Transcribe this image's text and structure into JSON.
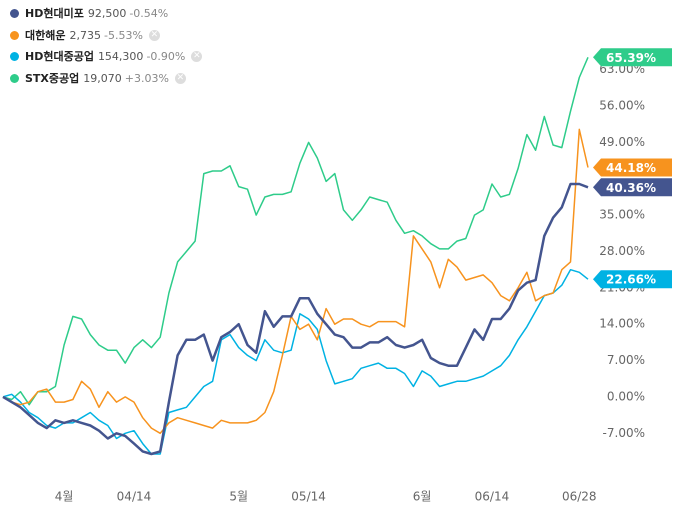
{
  "chart_data": {
    "type": "line",
    "categories": [
      null,
      null,
      null,
      null,
      null,
      null,
      null,
      "4월",
      null,
      null,
      null,
      null,
      null,
      null,
      null,
      "04/14",
      null,
      null,
      null,
      null,
      null,
      null,
      null,
      null,
      null,
      null,
      null,
      "5월",
      null,
      null,
      null,
      null,
      null,
      null,
      null,
      "05/14",
      null,
      null,
      null,
      null,
      null,
      null,
      null,
      null,
      null,
      null,
      null,
      null,
      "6월",
      null,
      null,
      null,
      null,
      null,
      null,
      null,
      "06/14",
      null,
      null,
      null,
      null,
      null,
      null,
      null,
      null,
      null,
      "06/28",
      null
    ],
    "series": [
      {
        "name": "HD현대미포",
        "price": "92,500",
        "change": "-0.54%",
        "color": "#44558f",
        "values": [
          0,
          -1,
          -2,
          -3.5,
          -5,
          -6,
          -4.5,
          -5,
          -4.5,
          -5,
          -5.5,
          -6.5,
          -8,
          -7,
          -7.5,
          -9,
          -10.5,
          -11,
          -10.5,
          -1,
          8,
          11,
          11,
          12,
          7,
          11.5,
          12.5,
          14,
          10,
          8.5,
          16.5,
          13.5,
          15.5,
          15.5,
          19,
          19,
          16,
          14,
          12,
          11.5,
          9.5,
          9.5,
          10.5,
          10.5,
          11.5,
          10,
          9.5,
          10,
          11,
          7.5,
          6.5,
          6,
          6,
          9.5,
          13,
          11,
          15,
          15,
          17,
          20.5,
          22,
          22.5,
          31,
          34.5,
          36.5,
          41,
          41,
          40.36
        ],
        "value_labels": [
          null,
          null,
          null,
          null,
          null,
          null,
          null,
          null,
          null,
          null,
          null,
          null,
          null,
          null,
          null,
          null,
          null,
          null,
          null,
          null,
          null,
          null,
          null,
          null,
          null,
          null,
          null,
          null,
          null,
          null,
          null,
          null,
          null,
          null,
          null,
          null,
          null,
          null,
          null,
          null,
          null,
          null,
          null,
          null,
          null,
          null,
          null,
          null,
          null,
          null,
          null,
          null,
          null,
          null,
          null,
          null,
          null,
          null,
          null,
          null,
          null,
          null,
          null,
          null,
          null,
          null,
          null,
          "40.36%"
        ]
      },
      {
        "name": "대한해운",
        "price": "2,735",
        "change": "-5.53%",
        "color": "#f7931e",
        "values": [
          0,
          -1,
          -1.5,
          -1,
          1,
          1.5,
          -1,
          -1,
          -0.5,
          3,
          1.5,
          -2,
          1,
          -1,
          0,
          -1,
          -4,
          -6,
          -7,
          -5,
          -4,
          -4.5,
          -5,
          -5.5,
          -6,
          -4.5,
          -5,
          -5,
          -5,
          -4.5,
          -3,
          1,
          8,
          15.5,
          13,
          14,
          11,
          17,
          14,
          15,
          15,
          14,
          13.5,
          14.5,
          14.5,
          14.5,
          13.5,
          31,
          28.5,
          26,
          21,
          26.5,
          25,
          22.5,
          23,
          23.5,
          22,
          19.5,
          18.5,
          21,
          24,
          18.5,
          19.5,
          20,
          24.5,
          26,
          51.5,
          44.18
        ],
        "value_labels": [
          null,
          null,
          null,
          null,
          null,
          null,
          null,
          null,
          null,
          null,
          null,
          null,
          null,
          null,
          null,
          null,
          null,
          null,
          null,
          null,
          null,
          null,
          null,
          null,
          null,
          null,
          null,
          null,
          null,
          null,
          null,
          null,
          null,
          null,
          null,
          null,
          null,
          null,
          null,
          null,
          null,
          null,
          null,
          null,
          null,
          null,
          null,
          null,
          null,
          null,
          null,
          null,
          null,
          null,
          null,
          null,
          null,
          null,
          null,
          null,
          null,
          null,
          null,
          null,
          null,
          null,
          null,
          "44.18%"
        ]
      },
      {
        "name": "HD현대중공업",
        "price": "154,300",
        "change": "-0.90%",
        "color": "#00b2e3",
        "values": [
          0,
          0.5,
          -1,
          -3,
          -4,
          -5.5,
          -6,
          -5,
          -5,
          -4,
          -3,
          -4.5,
          -5.5,
          -8,
          -7,
          -6.5,
          -9,
          -11,
          -11,
          -3,
          -2.5,
          -2,
          0,
          2,
          3,
          11,
          12,
          9.5,
          8,
          7,
          11,
          9,
          8.5,
          9,
          16,
          15,
          13,
          7,
          2.5,
          3,
          3.5,
          5.5,
          6,
          6.5,
          5.5,
          5.5,
          4.5,
          2,
          5,
          4,
          2,
          2.5,
          3,
          3,
          3.5,
          4,
          5,
          6,
          8,
          11,
          13.5,
          16.5,
          19.5,
          20,
          21.5,
          24.5,
          24,
          22.66
        ],
        "value_labels": [
          null,
          null,
          null,
          null,
          null,
          null,
          null,
          null,
          null,
          null,
          null,
          null,
          null,
          null,
          null,
          null,
          null,
          null,
          null,
          null,
          null,
          null,
          null,
          null,
          null,
          null,
          null,
          null,
          null,
          null,
          null,
          null,
          null,
          null,
          null,
          null,
          null,
          null,
          null,
          null,
          null,
          null,
          null,
          null,
          null,
          null,
          null,
          null,
          null,
          null,
          null,
          null,
          null,
          null,
          null,
          null,
          null,
          null,
          null,
          null,
          null,
          null,
          null,
          null,
          null,
          null,
          null,
          "22.66%"
        ]
      },
      {
        "name": "STX중공업",
        "price": "19,070",
        "change": "+3.03%",
        "color": "#2ecc8a",
        "values": [
          0,
          -0.5,
          1,
          -1.5,
          1,
          1,
          2,
          10,
          15.5,
          15,
          12,
          10,
          9,
          9,
          6.5,
          9.5,
          11,
          9.5,
          11.5,
          20,
          26,
          28,
          30,
          43,
          43.5,
          43.5,
          44.5,
          40.5,
          40,
          35,
          38.5,
          39,
          39,
          39.5,
          45,
          49,
          46,
          41.5,
          43,
          36,
          34,
          36,
          38.5,
          38,
          37.5,
          34,
          31.5,
          32,
          31,
          29.5,
          28.5,
          28.5,
          30,
          30.5,
          35,
          36,
          41,
          38.5,
          39,
          44,
          50.5,
          47.5,
          54,
          48.5,
          48,
          55,
          61.5,
          65.39
        ],
        "value_labels": [
          null,
          null,
          null,
          null,
          null,
          null,
          null,
          null,
          null,
          null,
          null,
          null,
          null,
          null,
          null,
          null,
          null,
          null,
          null,
          null,
          null,
          null,
          null,
          null,
          null,
          null,
          null,
          null,
          null,
          null,
          null,
          null,
          null,
          null,
          null,
          null,
          null,
          null,
          null,
          null,
          null,
          null,
          null,
          null,
          null,
          null,
          null,
          null,
          null,
          null,
          null,
          null,
          null,
          null,
          null,
          null,
          null,
          null,
          null,
          null,
          null,
          null,
          null,
          null,
          null,
          null,
          null,
          "65.39%"
        ]
      }
    ],
    "ylim": [
      -16,
      74.5
    ],
    "yticks": [
      {
        "value": -7,
        "label": "-7.00%"
      },
      {
        "value": 0,
        "label": "0.00%"
      },
      {
        "value": 7,
        "label": "7.00%"
      },
      {
        "value": 14,
        "label": "14.00%"
      },
      {
        "value": 21,
        "label": "21.00%"
      },
      {
        "value": 28,
        "label": "28.00%"
      },
      {
        "value": 35,
        "label": "35.00%"
      },
      {
        "value": 49,
        "label": "49.00%"
      },
      {
        "value": 56,
        "label": "56.00%"
      },
      {
        "value": 63,
        "label": "63.00%"
      }
    ],
    "grid": false
  }
}
